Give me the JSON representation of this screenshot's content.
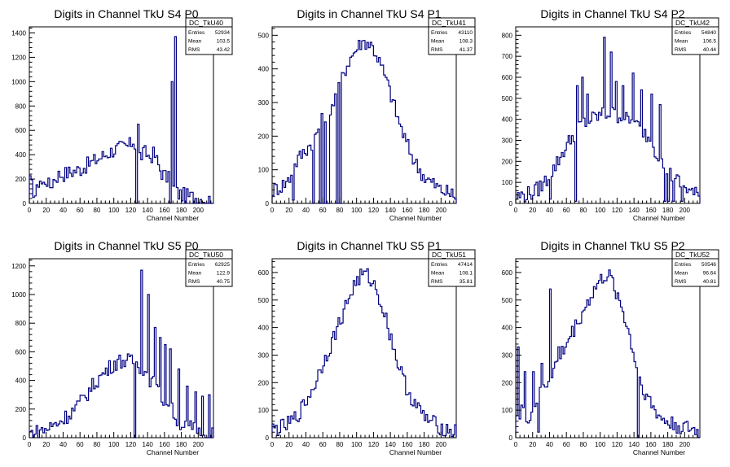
{
  "x_ticks": [
    "0",
    "20",
    "40",
    "60",
    "80",
    "100",
    "120",
    "140",
    "160",
    "180",
    "200"
  ],
  "chart_data": [
    {
      "type": "histogram",
      "title": "Digits in Channel TkU S4 P0",
      "xlabel": "Channel Number",
      "xlim": [
        0,
        218
      ],
      "ylim": [
        0,
        1450
      ],
      "y_ticks": [
        0,
        200,
        400,
        600,
        800,
        1000,
        1200,
        1400
      ],
      "stats": {
        "name": "DC_TkU40",
        "entries_label": "Entries",
        "entries": "52934",
        "mean_label": "Mean",
        "mean": "103.5",
        "rms_label": "RMS",
        "rms": "43.42"
      },
      "profile": [
        [
          0,
          195
        ],
        [
          4,
          120
        ],
        [
          8,
          60
        ],
        [
          12,
          220
        ],
        [
          16,
          140
        ],
        [
          20,
          210
        ],
        [
          24,
          130
        ],
        [
          30,
          210
        ],
        [
          36,
          240
        ],
        [
          40,
          240
        ],
        [
          50,
          260
        ],
        [
          60,
          280
        ],
        [
          70,
          320
        ],
        [
          80,
          360
        ],
        [
          90,
          400
        ],
        [
          100,
          440
        ],
        [
          110,
          460
        ],
        [
          118,
          470
        ],
        [
          124,
          520
        ],
        [
          128,
          400
        ],
        [
          132,
          390
        ],
        [
          138,
          420
        ],
        [
          142,
          380
        ],
        [
          148,
          410
        ],
        [
          152,
          330
        ],
        [
          156,
          260
        ],
        [
          160,
          230
        ],
        [
          165,
          200
        ],
        [
          170,
          130
        ],
        [
          176,
          80
        ],
        [
          186,
          60
        ],
        [
          196,
          50
        ],
        [
          210,
          30
        ],
        [
          218,
          20
        ]
      ],
      "spikes": [
        [
          128,
          650
        ],
        [
          168,
          1000
        ],
        [
          173,
          1370
        ]
      ],
      "dips": [
        [
          127,
          5
        ],
        [
          166,
          5
        ],
        [
          167,
          5
        ]
      ]
    },
    {
      "type": "histogram",
      "title": "Digits in Channel TkU S4 P1",
      "xlabel": "Channel Number",
      "xlim": [
        0,
        218
      ],
      "ylim": [
        0,
        525
      ],
      "y_ticks": [
        0,
        100,
        200,
        300,
        400,
        500
      ],
      "stats": {
        "name": "DC_TkU41",
        "entries_label": "Entries",
        "entries": "43110",
        "mean_label": "Mean",
        "mean": "108.3",
        "rms_label": "RMS",
        "rms": "41.37"
      },
      "profile": [
        [
          0,
          40
        ],
        [
          10,
          50
        ],
        [
          20,
          70
        ],
        [
          30,
          130
        ],
        [
          40,
          160
        ],
        [
          50,
          190
        ],
        [
          56,
          230
        ],
        [
          62,
          260
        ],
        [
          70,
          290
        ],
        [
          78,
          330
        ],
        [
          85,
          390
        ],
        [
          92,
          430
        ],
        [
          100,
          460
        ],
        [
          106,
          480
        ],
        [
          112,
          480
        ],
        [
          118,
          470
        ],
        [
          124,
          440
        ],
        [
          132,
          390
        ],
        [
          140,
          330
        ],
        [
          148,
          260
        ],
        [
          156,
          200
        ],
        [
          164,
          150
        ],
        [
          172,
          110
        ],
        [
          180,
          80
        ],
        [
          190,
          60
        ],
        [
          200,
          40
        ],
        [
          210,
          30
        ],
        [
          218,
          20
        ]
      ],
      "spikes": [],
      "dips": [
        [
          24,
          10
        ],
        [
          48,
          0
        ],
        [
          56,
          0
        ],
        [
          60,
          0
        ],
        [
          65,
          0
        ],
        [
          66,
          0
        ],
        [
          76,
          0
        ],
        [
          80,
          0
        ]
      ]
    },
    {
      "type": "histogram",
      "title": "Digits in Channel TkU S4 P2",
      "xlabel": "Channel Number",
      "xlim": [
        0,
        218
      ],
      "ylim": [
        0,
        840
      ],
      "y_ticks": [
        0,
        100,
        200,
        300,
        400,
        500,
        600,
        700,
        800
      ],
      "stats": {
        "name": "DC_TkU42",
        "entries_label": "Entries",
        "entries": "54840",
        "mean_label": "Mean",
        "mean": "106.5",
        "rms_label": "RMS",
        "rms": "40.44"
      },
      "profile": [
        [
          0,
          30
        ],
        [
          10,
          40
        ],
        [
          20,
          50
        ],
        [
          30,
          80
        ],
        [
          40,
          130
        ],
        [
          50,
          200
        ],
        [
          58,
          260
        ],
        [
          66,
          310
        ],
        [
          72,
          350
        ],
        [
          80,
          380
        ],
        [
          90,
          400
        ],
        [
          100,
          420
        ],
        [
          110,
          430
        ],
        [
          120,
          420
        ],
        [
          130,
          400
        ],
        [
          140,
          380
        ],
        [
          150,
          350
        ],
        [
          160,
          300
        ],
        [
          166,
          250
        ],
        [
          172,
          200
        ],
        [
          180,
          150
        ],
        [
          190,
          110
        ],
        [
          200,
          80
        ],
        [
          210,
          50
        ],
        [
          218,
          30
        ]
      ],
      "spikes": [
        [
          72,
          560
        ],
        [
          78,
          600
        ],
        [
          84,
          520
        ],
        [
          104,
          790
        ],
        [
          112,
          720
        ],
        [
          118,
          580
        ],
        [
          126,
          560
        ],
        [
          138,
          620
        ],
        [
          148,
          540
        ],
        [
          160,
          520
        ],
        [
          170,
          470
        ]
      ],
      "dips": [
        [
          40,
          20
        ],
        [
          70,
          10
        ],
        [
          176,
          10
        ],
        [
          180,
          10
        ],
        [
          186,
          10
        ],
        [
          196,
          10
        ]
      ]
    },
    {
      "type": "histogram",
      "title": "Digits in Channel TkU S5 P0",
      "xlabel": "Channel Number",
      "xlim": [
        0,
        218
      ],
      "ylim": [
        0,
        1250
      ],
      "y_ticks": [
        0,
        200,
        400,
        600,
        800,
        1000,
        1200
      ],
      "stats": {
        "name": "DC_TkU50",
        "entries_label": "Entries",
        "entries": "62925",
        "mean_label": "Mean",
        "mean": "122.9",
        "rms_label": "RMS",
        "rms": "40.75"
      },
      "profile": [
        [
          0,
          30
        ],
        [
          10,
          40
        ],
        [
          20,
          60
        ],
        [
          30,
          90
        ],
        [
          40,
          130
        ],
        [
          50,
          180
        ],
        [
          60,
          240
        ],
        [
          70,
          320
        ],
        [
          80,
          400
        ],
        [
          90,
          460
        ],
        [
          100,
          520
        ],
        [
          110,
          540
        ],
        [
          120,
          530
        ],
        [
          126,
          520
        ],
        [
          130,
          500
        ],
        [
          136,
          470
        ],
        [
          142,
          420
        ],
        [
          150,
          350
        ],
        [
          160,
          250
        ],
        [
          168,
          200
        ],
        [
          176,
          120
        ],
        [
          186,
          80
        ],
        [
          196,
          60
        ],
        [
          210,
          50
        ],
        [
          218,
          40
        ]
      ],
      "spikes": [
        [
          132,
          1170
        ],
        [
          140,
          1000
        ],
        [
          148,
          770
        ],
        [
          154,
          700
        ],
        [
          160,
          650
        ],
        [
          166,
          620
        ],
        [
          176,
          480
        ],
        [
          186,
          360
        ],
        [
          196,
          320
        ],
        [
          204,
          290
        ],
        [
          212,
          300
        ]
      ],
      "dips": [
        [
          124,
          0
        ],
        [
          210,
          0
        ]
      ]
    },
    {
      "type": "histogram",
      "title": "Digits in Channel TkU S5 P1",
      "xlabel": "Channel Number",
      "xlim": [
        0,
        218
      ],
      "ylim": [
        0,
        650
      ],
      "y_ticks": [
        0,
        100,
        200,
        300,
        400,
        500,
        600
      ],
      "stats": {
        "name": "DC_TkU51",
        "entries_label": "Entries",
        "entries": "47414",
        "mean_label": "Mean",
        "mean": "108.1",
        "rms_label": "RMS",
        "rms": "35.81"
      },
      "profile": [
        [
          0,
          30
        ],
        [
          10,
          35
        ],
        [
          20,
          50
        ],
        [
          30,
          80
        ],
        [
          40,
          130
        ],
        [
          50,
          190
        ],
        [
          60,
          270
        ],
        [
          70,
          340
        ],
        [
          80,
          420
        ],
        [
          90,
          500
        ],
        [
          98,
          560
        ],
        [
          106,
          590
        ],
        [
          112,
          590
        ],
        [
          118,
          570
        ],
        [
          126,
          520
        ],
        [
          134,
          440
        ],
        [
          142,
          350
        ],
        [
          150,
          260
        ],
        [
          158,
          190
        ],
        [
          166,
          140
        ],
        [
          174,
          100
        ],
        [
          182,
          70
        ],
        [
          192,
          50
        ],
        [
          202,
          35
        ],
        [
          212,
          25
        ],
        [
          218,
          20
        ]
      ],
      "spikes": [],
      "dips": []
    },
    {
      "type": "histogram",
      "title": "Digits in Channel TkU S5 P2",
      "xlabel": "Channel Number",
      "xlim": [
        0,
        218
      ],
      "ylim": [
        0,
        650
      ],
      "y_ticks": [
        0,
        100,
        200,
        300,
        400,
        500,
        600
      ],
      "stats": {
        "name": "DC_TkU52",
        "entries_label": "Entries",
        "entries": "50546",
        "mean_label": "Mean",
        "mean": "96.64",
        "rms_label": "RMS",
        "rms": "40.81"
      },
      "profile": [
        [
          0,
          120
        ],
        [
          4,
          60
        ],
        [
          8,
          120
        ],
        [
          12,
          60
        ],
        [
          18,
          90
        ],
        [
          24,
          130
        ],
        [
          30,
          160
        ],
        [
          36,
          190
        ],
        [
          42,
          230
        ],
        [
          50,
          280
        ],
        [
          60,
          340
        ],
        [
          70,
          400
        ],
        [
          80,
          460
        ],
        [
          90,
          520
        ],
        [
          98,
          560
        ],
        [
          106,
          590
        ],
        [
          112,
          580
        ],
        [
          118,
          540
        ],
        [
          126,
          470
        ],
        [
          134,
          380
        ],
        [
          140,
          300
        ],
        [
          146,
          220
        ],
        [
          154,
          160
        ],
        [
          162,
          110
        ],
        [
          172,
          70
        ],
        [
          184,
          50
        ],
        [
          196,
          40
        ],
        [
          208,
          30
        ],
        [
          218,
          20
        ]
      ],
      "spikes": [
        [
          2,
          330
        ],
        [
          10,
          240
        ],
        [
          20,
          240
        ],
        [
          30,
          270
        ],
        [
          40,
          540
        ],
        [
          50,
          330
        ]
      ],
      "dips": [
        [
          144,
          0
        ],
        [
          26,
          20
        ]
      ]
    }
  ]
}
